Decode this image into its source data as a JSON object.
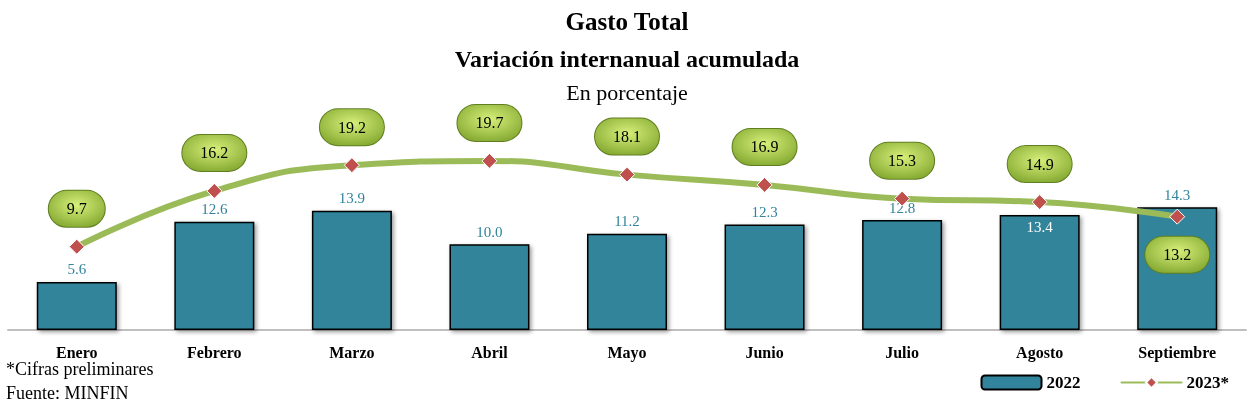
{
  "chart_data": {
    "type": "bar",
    "title": "Gasto Total",
    "subtitle": "Variación internanual acumulada",
    "annotations": [
      "En porcentaje",
      "*Cifras preliminares",
      "Fuente: MINFIN"
    ],
    "categories": [
      "Enero",
      "Febrero",
      "Marzo",
      "Abril",
      "Mayo",
      "Junio",
      "Julio",
      "Agosto",
      "Septiembre"
    ],
    "series": [
      {
        "name": "2022",
        "type": "bar",
        "color": "#31849b",
        "values": [
          5.6,
          12.6,
          13.9,
          10.0,
          11.2,
          12.3,
          12.8,
          13.4,
          14.3
        ],
        "value_labels": [
          "5.6",
          "12.6",
          "13.9",
          "10.0",
          "11.2",
          "12.3",
          "12.8",
          "13.4",
          "14.3"
        ]
      },
      {
        "name": "2023*",
        "type": "line",
        "color": "#9bbb59",
        "marker": "diamond",
        "values": [
          9.7,
          16.2,
          19.2,
          19.7,
          18.1,
          16.9,
          15.3,
          14.9,
          13.2
        ]
      }
    ],
    "data_labels": true,
    "legend": "bottom right",
    "grid": false
  }
}
